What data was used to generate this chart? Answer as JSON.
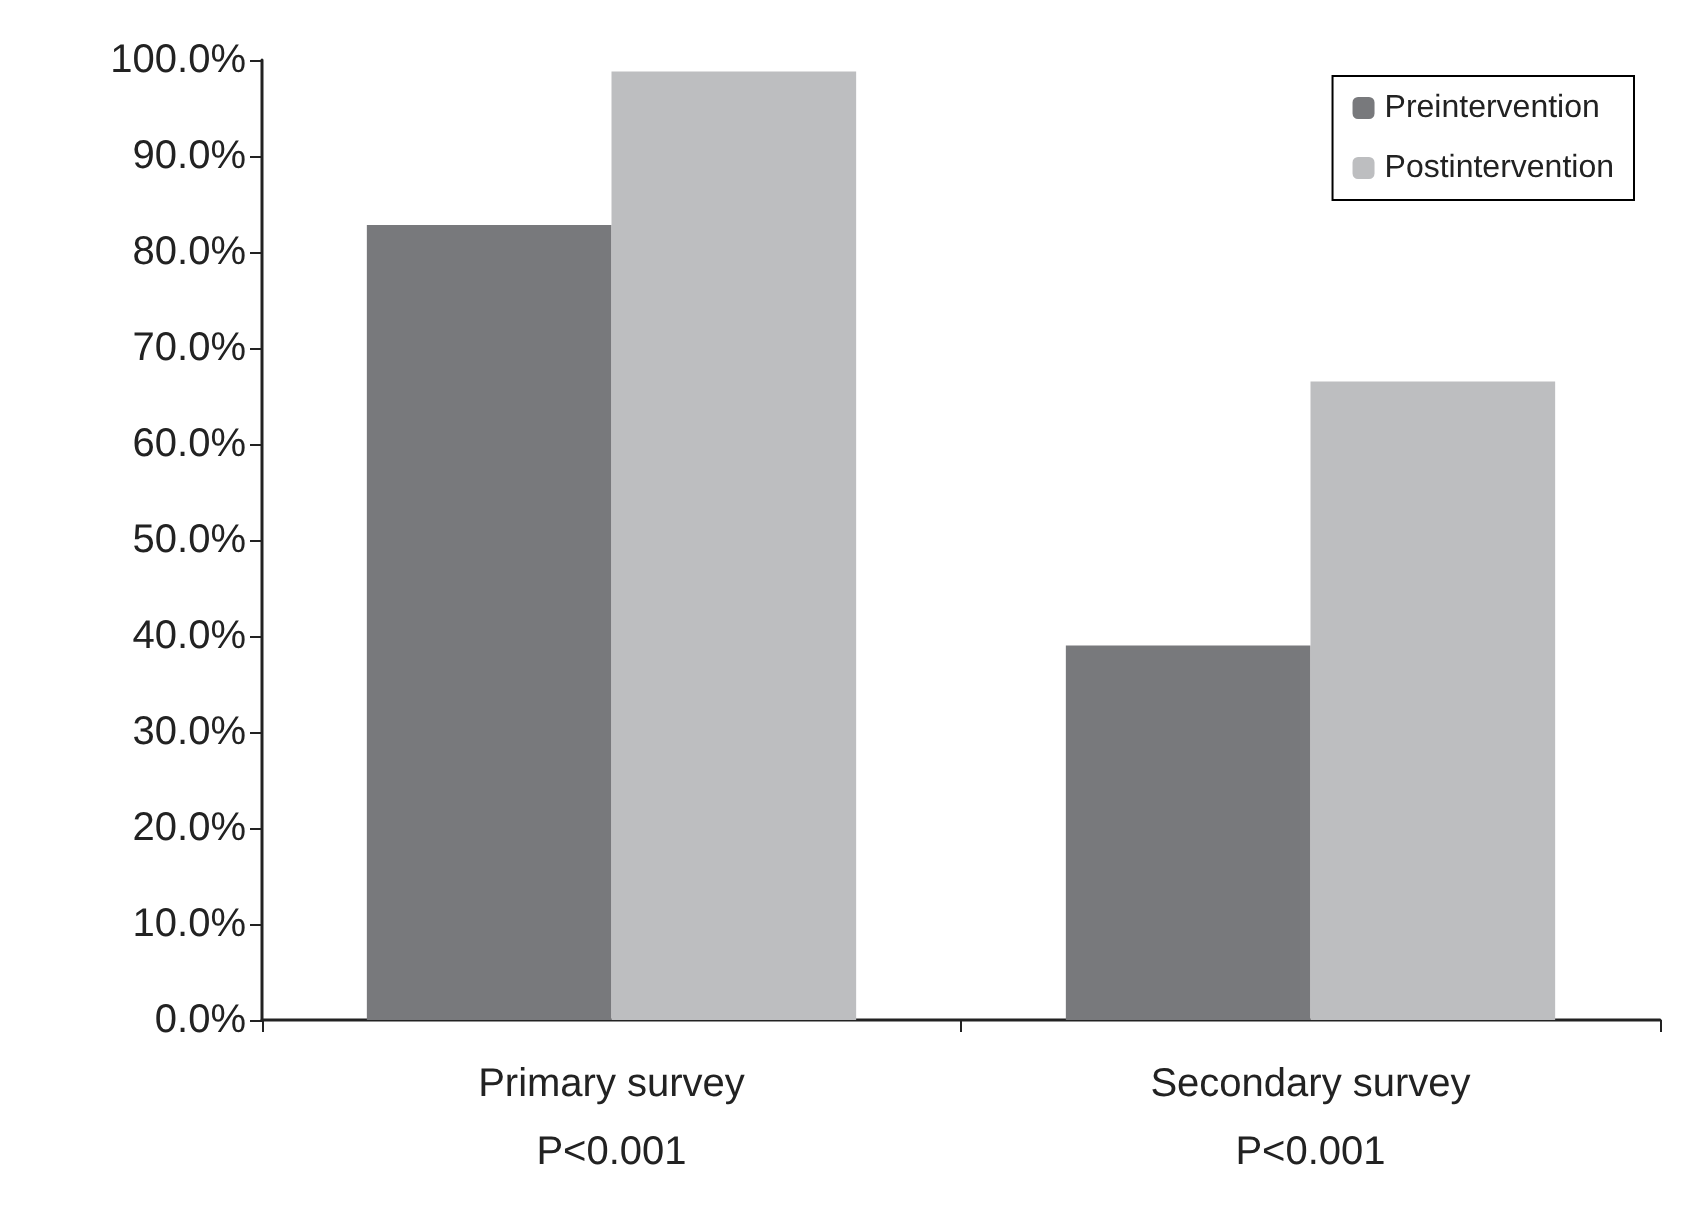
{
  "chart_data": {
    "type": "bar",
    "categories": [
      "Primary survey",
      "Secondary survey"
    ],
    "series": [
      {
        "name": "Preintervention",
        "color": "#78797c",
        "values": [
          82.8,
          39.0
        ]
      },
      {
        "name": "Postintervention",
        "color": "#bdbec0",
        "values": [
          98.8,
          66.5
        ]
      }
    ],
    "ylim": [
      0,
      100
    ],
    "yticks": [
      {
        "value": 0,
        "label": "0.0%"
      },
      {
        "value": 10,
        "label": "10.0%"
      },
      {
        "value": 20,
        "label": "20.0%"
      },
      {
        "value": 30,
        "label": "30.0%"
      },
      {
        "value": 40,
        "label": "40.0%"
      },
      {
        "value": 50,
        "label": "50.0%"
      },
      {
        "value": 60,
        "label": "60.0%"
      },
      {
        "value": 70,
        "label": "70.0%"
      },
      {
        "value": 80,
        "label": "80.0%"
      },
      {
        "value": 90,
        "label": "90.0%"
      },
      {
        "value": 100,
        "label": "100.0%"
      }
    ],
    "annotations": [
      "P<0.001",
      "P<0.001"
    ],
    "grid": false,
    "legend": "top right"
  }
}
